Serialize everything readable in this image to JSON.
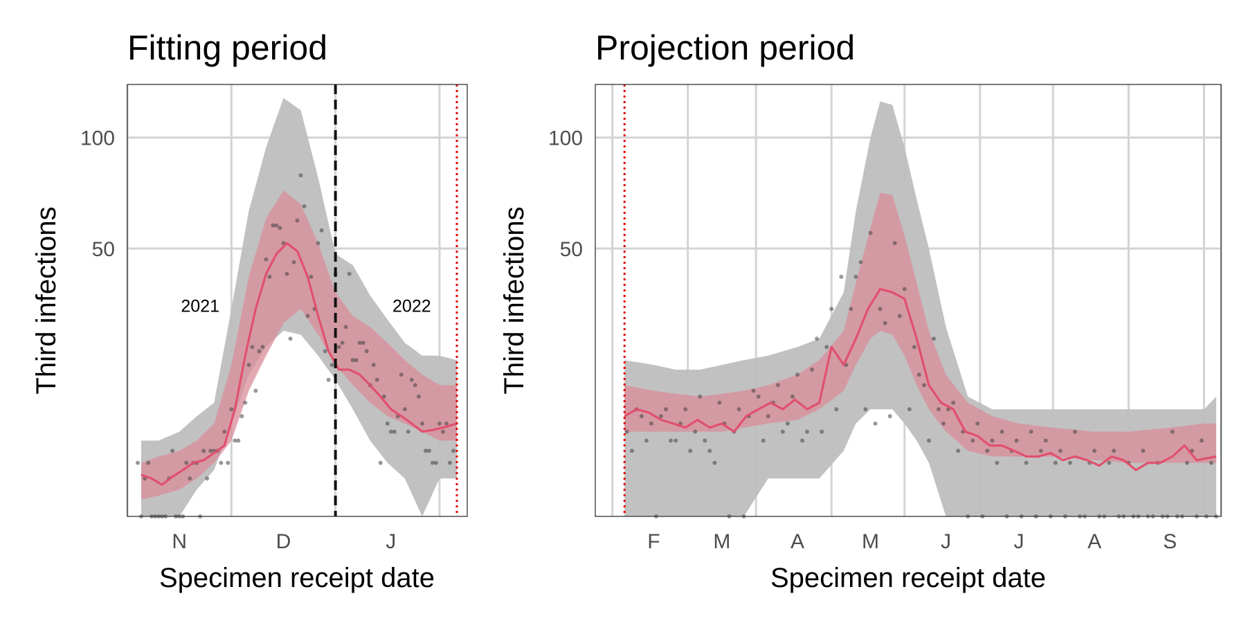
{
  "colors": {
    "outer_ribbon": "#bebebe",
    "inner_ribbon": "#d98c9a",
    "median_line": "#e0506e",
    "points": "#444444",
    "grid": "#d3d3d3",
    "fit_end_line": "#111111",
    "period_boundary_line": "#e00000"
  },
  "chart_data": [
    {
      "type": "line",
      "title": "Fitting period",
      "xlabel": "Specimen receipt date",
      "ylabel": "Third infections",
      "y_scale": "sqrt",
      "ylim": [
        0,
        130
      ],
      "y_ticks": [
        50,
        100
      ],
      "y_tick_labels": [
        "50",
        "100"
      ],
      "xlim": [
        "2021-10-17",
        "2022-01-23"
      ],
      "x_tick_labels": [
        {
          "date": "2021-11-01",
          "label": "N"
        },
        {
          "date": "2021-12-01",
          "label": "D"
        },
        {
          "date": "2022-01-01",
          "label": "J"
        }
      ],
      "x_grid_dates": [
        "2021-10-17",
        "2021-11-16",
        "2021-12-16",
        "2022-01-15"
      ],
      "annotations": [
        {
          "text": "2021",
          "date": "2021-11-07",
          "y": 31
        },
        {
          "text": "2022",
          "date": "2022-01-07",
          "y": 31
        }
      ],
      "vlines": [
        {
          "date": "2021-12-16",
          "style": "dashed",
          "color": "black"
        },
        {
          "date": "2022-01-20",
          "style": "dotted",
          "color": "red"
        }
      ],
      "outer_band": {
        "x": [
          "2021-10-21",
          "2021-10-26",
          "2021-11-01",
          "2021-11-06",
          "2021-11-11",
          "2021-11-16",
          "2021-11-21",
          "2021-11-26",
          "2021-12-01",
          "2021-12-06",
          "2021-12-11",
          "2021-12-16",
          "2021-12-21",
          "2021-12-26",
          "2021-12-31",
          "2022-01-05",
          "2022-01-10",
          "2022-01-15",
          "2022-01-20"
        ],
        "lower": [
          0,
          0,
          0,
          0.5,
          1.5,
          6,
          14,
          20,
          24,
          23,
          18,
          13,
          8,
          4,
          2,
          1,
          0,
          1,
          1
        ],
        "upper": [
          4,
          4,
          5,
          7,
          9,
          30,
          65,
          95,
          122,
          115,
          80,
          48,
          44,
          34,
          27,
          21,
          18,
          18,
          17
        ]
      },
      "inner_band": {
        "x": [
          "2021-10-21",
          "2021-10-26",
          "2021-11-01",
          "2021-11-06",
          "2021-11-11",
          "2021-11-16",
          "2021-11-21",
          "2021-11-26",
          "2021-12-01",
          "2021-12-06",
          "2021-12-11",
          "2021-12-16",
          "2021-12-21",
          "2021-12-26",
          "2021-12-31",
          "2022-01-05",
          "2022-01-10",
          "2022-01-15",
          "2022-01-20"
        ],
        "lower": [
          0.2,
          0.3,
          0.5,
          1,
          2,
          4,
          11,
          18,
          26,
          30,
          23,
          16,
          12,
          9,
          7,
          6,
          5,
          4,
          4
        ],
        "upper": [
          2,
          2.5,
          3,
          4,
          6,
          16,
          40,
          62,
          74,
          68,
          52,
          35,
          28,
          25,
          21,
          17,
          14,
          12,
          12
        ]
      },
      "median_line": {
        "x": [
          "2021-10-21",
          "2021-10-24",
          "2021-10-27",
          "2021-10-30",
          "2021-11-02",
          "2021-11-05",
          "2021-11-08",
          "2021-11-11",
          "2021-11-14",
          "2021-11-17",
          "2021-11-20",
          "2021-11-23",
          "2021-11-26",
          "2021-11-29",
          "2021-12-02",
          "2021-12-05",
          "2021-12-08",
          "2021-12-11",
          "2021-12-14",
          "2021-12-17",
          "2021-12-20",
          "2021-12-23",
          "2021-12-26",
          "2021-12-29",
          "2022-01-01",
          "2022-01-04",
          "2022-01-07",
          "2022-01-10",
          "2022-01-13",
          "2022-01-16",
          "2022-01-20"
        ],
        "y": [
          1.2,
          1.0,
          0.7,
          1.1,
          1.5,
          2.0,
          2.2,
          2.8,
          3.5,
          8,
          18,
          30,
          41,
          48,
          52,
          49,
          40,
          28,
          19,
          15,
          15,
          14,
          12,
          10,
          8,
          7,
          6,
          5,
          5.2,
          5.5,
          6
        ]
      },
      "points": {
        "x": [
          "2021-10-20",
          "2021-10-21",
          "2021-10-22",
          "2021-10-23",
          "2021-10-24",
          "2021-10-25",
          "2021-10-26",
          "2021-10-27",
          "2021-10-28",
          "2021-10-29",
          "2021-10-30",
          "2021-10-31",
          "2021-11-01",
          "2021-11-02",
          "2021-11-03",
          "2021-11-04",
          "2021-11-05",
          "2021-11-06",
          "2021-11-07",
          "2021-11-08",
          "2021-11-09",
          "2021-11-10",
          "2021-11-11",
          "2021-11-12",
          "2021-11-13",
          "2021-11-14",
          "2021-11-15",
          "2021-11-16",
          "2021-11-17",
          "2021-11-18",
          "2021-11-19",
          "2021-11-20",
          "2021-11-21",
          "2021-11-22",
          "2021-11-23",
          "2021-11-24",
          "2021-11-25",
          "2021-11-26",
          "2021-11-27",
          "2021-11-28",
          "2021-11-29",
          "2021-11-30",
          "2021-12-01",
          "2021-12-02",
          "2021-12-03",
          "2021-12-04",
          "2021-12-05",
          "2021-12-06",
          "2021-12-07",
          "2021-12-08",
          "2021-12-09",
          "2021-12-10",
          "2021-12-11",
          "2021-12-12",
          "2021-12-13",
          "2021-12-14",
          "2021-12-15",
          "2021-12-16",
          "2021-12-17",
          "2021-12-18",
          "2021-12-19",
          "2021-12-20",
          "2021-12-21",
          "2021-12-22",
          "2021-12-23",
          "2021-12-24",
          "2021-12-25",
          "2021-12-26",
          "2021-12-27",
          "2021-12-28",
          "2021-12-29",
          "2021-12-30",
          "2021-12-31",
          "2022-01-01",
          "2022-01-02",
          "2022-01-03",
          "2022-01-04",
          "2022-01-05",
          "2022-01-06",
          "2022-01-07",
          "2022-01-08",
          "2022-01-09",
          "2022-01-10",
          "2022-01-11",
          "2022-01-12",
          "2022-01-13",
          "2022-01-14",
          "2022-01-15",
          "2022-01-16",
          "2022-01-17",
          "2022-01-18",
          "2022-01-19"
        ],
        "y": [
          2,
          0,
          1,
          2,
          0,
          0,
          0,
          0,
          0,
          1,
          3,
          0,
          0,
          0,
          2,
          1,
          2,
          2,
          0,
          3,
          1,
          3,
          3,
          3,
          2,
          5,
          2,
          8,
          4,
          4,
          7,
          9,
          16,
          20,
          11,
          19,
          20,
          46,
          40,
          59,
          59,
          58,
          52,
          41,
          22,
          45,
          61,
          81,
          67,
          28,
          40,
          30,
          52,
          57,
          19,
          13,
          16,
          41,
          20,
          21,
          25,
          41,
          17,
          17,
          21,
          21,
          19,
          12,
          16,
          13,
          2,
          10,
          6,
          5,
          5,
          7,
          14,
          8,
          5,
          13,
          12,
          10,
          6,
          3,
          3,
          2,
          2,
          6,
          5,
          6,
          2,
          3
        ]
      }
    },
    {
      "type": "line",
      "title": "Projection period",
      "xlabel": "Specimen receipt date",
      "ylabel": "Third infections",
      "y_scale": "sqrt",
      "ylim": [
        0,
        130
      ],
      "y_ticks": [
        50,
        100
      ],
      "y_tick_labels": [
        "50",
        "100"
      ],
      "xlim": [
        "2022-01-08",
        "2022-09-22"
      ],
      "x_tick_labels": [
        {
          "date": "2022-02-01",
          "label": "F"
        },
        {
          "date": "2022-03-01",
          "label": "M"
        },
        {
          "date": "2022-04-01",
          "label": "A"
        },
        {
          "date": "2022-05-01",
          "label": "M"
        },
        {
          "date": "2022-06-01",
          "label": "J"
        },
        {
          "date": "2022-07-01",
          "label": "J"
        },
        {
          "date": "2022-08-01",
          "label": "A"
        },
        {
          "date": "2022-09-01",
          "label": "S"
        }
      ],
      "x_grid_dates": [
        "2022-01-15",
        "2022-02-15",
        "2022-03-15",
        "2022-04-15",
        "2022-05-15",
        "2022-06-15",
        "2022-07-15",
        "2022-08-15",
        "2022-09-15",
        "2022-09-22"
      ],
      "vlines": [
        {
          "date": "2022-01-20",
          "style": "dotted",
          "color": "red"
        }
      ],
      "outer_band": {
        "x": [
          "2022-01-20",
          "2022-02-01",
          "2022-02-10",
          "2022-02-20",
          "2022-03-01",
          "2022-03-10",
          "2022-03-20",
          "2022-04-01",
          "2022-04-10",
          "2022-04-20",
          "2022-04-25",
          "2022-05-01",
          "2022-05-05",
          "2022-05-10",
          "2022-05-15",
          "2022-05-20",
          "2022-05-25",
          "2022-06-01",
          "2022-06-10",
          "2022-06-20",
          "2022-07-01",
          "2022-07-15",
          "2022-08-01",
          "2022-08-15",
          "2022-09-01",
          "2022-09-15",
          "2022-09-20"
        ],
        "lower": [
          0,
          0,
          0,
          0,
          0,
          0,
          1,
          1,
          1,
          3,
          6,
          8,
          8,
          8,
          6,
          4,
          2,
          0,
          0,
          0,
          0,
          0,
          0,
          0,
          0,
          0,
          0
        ],
        "upper": [
          17,
          16,
          15,
          15,
          16,
          17,
          18,
          20,
          22,
          35,
          65,
          100,
          120,
          118,
          95,
          70,
          50,
          25,
          10,
          8,
          8,
          8,
          8,
          8,
          8,
          8,
          10
        ]
      },
      "inner_band": {
        "x": [
          "2022-01-20",
          "2022-02-01",
          "2022-02-10",
          "2022-02-20",
          "2022-03-01",
          "2022-03-10",
          "2022-03-20",
          "2022-04-01",
          "2022-04-10",
          "2022-04-20",
          "2022-04-25",
          "2022-05-01",
          "2022-05-05",
          "2022-05-10",
          "2022-05-15",
          "2022-05-20",
          "2022-05-25",
          "2022-06-01",
          "2022-06-10",
          "2022-06-20",
          "2022-07-01",
          "2022-07-15",
          "2022-08-01",
          "2022-08-15",
          "2022-09-01",
          "2022-09-15",
          "2022-09-20"
        ],
        "lower": [
          5,
          5,
          5,
          5,
          5,
          5.5,
          6,
          6.5,
          8,
          11,
          16,
          22,
          24,
          23,
          18,
          12,
          8,
          5,
          3,
          2.5,
          2.5,
          2.5,
          2.2,
          2,
          2,
          2,
          2
        ],
        "upper": [
          12,
          11,
          10.5,
          10,
          10.5,
          11,
          12,
          14,
          17,
          24,
          38,
          58,
          73,
          72,
          55,
          38,
          24,
          14,
          9,
          7,
          6,
          5.5,
          5,
          5,
          5.5,
          6,
          6
        ]
      },
      "median_line": {
        "x": [
          "2022-01-20",
          "2022-01-25",
          "2022-01-30",
          "2022-02-04",
          "2022-02-09",
          "2022-02-14",
          "2022-02-19",
          "2022-02-24",
          "2022-03-01",
          "2022-03-06",
          "2022-03-11",
          "2022-03-16",
          "2022-03-21",
          "2022-03-26",
          "2022-03-31",
          "2022-04-05",
          "2022-04-10",
          "2022-04-15",
          "2022-04-20",
          "2022-04-25",
          "2022-04-30",
          "2022-05-05",
          "2022-05-10",
          "2022-05-15",
          "2022-05-20",
          "2022-05-25",
          "2022-05-30",
          "2022-06-04",
          "2022-06-09",
          "2022-06-14",
          "2022-06-19",
          "2022-06-24",
          "2022-06-29",
          "2022-07-04",
          "2022-07-09",
          "2022-07-14",
          "2022-07-19",
          "2022-07-24",
          "2022-07-29",
          "2022-08-03",
          "2022-08-08",
          "2022-08-13",
          "2022-08-18",
          "2022-08-23",
          "2022-08-28",
          "2022-09-02",
          "2022-09-07",
          "2022-09-12",
          "2022-09-20"
        ],
        "y": [
          7,
          8,
          7.5,
          6.5,
          6,
          5.5,
          6.5,
          5.5,
          6,
          5,
          7,
          8,
          9,
          8,
          9.5,
          8,
          9,
          20,
          16,
          22,
          30,
          36,
          35,
          33,
          22,
          12,
          9,
          8,
          5,
          4.5,
          3.5,
          3.5,
          3,
          2.5,
          2.5,
          2.8,
          2.2,
          2.5,
          2.2,
          1.8,
          2.5,
          2.2,
          1.5,
          2,
          2,
          2.5,
          3.5,
          2.2,
          2.5
        ]
      },
      "points": {
        "x": [
          "2022-01-21",
          "2022-01-23",
          "2022-01-25",
          "2022-01-27",
          "2022-01-29",
          "2022-01-31",
          "2022-02-02",
          "2022-02-04",
          "2022-02-06",
          "2022-02-08",
          "2022-02-10",
          "2022-02-12",
          "2022-02-14",
          "2022-02-16",
          "2022-02-18",
          "2022-02-20",
          "2022-02-22",
          "2022-02-24",
          "2022-02-26",
          "2022-02-28",
          "2022-03-02",
          "2022-03-04",
          "2022-03-06",
          "2022-03-08",
          "2022-03-10",
          "2022-03-12",
          "2022-03-14",
          "2022-03-16",
          "2022-03-18",
          "2022-03-20",
          "2022-03-22",
          "2022-03-24",
          "2022-03-26",
          "2022-03-28",
          "2022-03-30",
          "2022-04-01",
          "2022-04-03",
          "2022-04-05",
          "2022-04-07",
          "2022-04-09",
          "2022-04-11",
          "2022-04-13",
          "2022-04-15",
          "2022-04-17",
          "2022-04-19",
          "2022-04-21",
          "2022-04-23",
          "2022-04-25",
          "2022-04-27",
          "2022-04-29",
          "2022-05-01",
          "2022-05-03",
          "2022-05-05",
          "2022-05-07",
          "2022-05-09",
          "2022-05-11",
          "2022-05-13",
          "2022-05-15",
          "2022-05-17",
          "2022-05-19",
          "2022-05-21",
          "2022-05-23",
          "2022-05-25",
          "2022-05-27",
          "2022-05-29",
          "2022-05-31",
          "2022-06-02",
          "2022-06-04",
          "2022-06-06",
          "2022-06-08",
          "2022-06-10",
          "2022-06-12",
          "2022-06-14",
          "2022-06-16",
          "2022-06-18",
          "2022-06-20",
          "2022-06-22",
          "2022-06-24",
          "2022-06-26",
          "2022-06-28",
          "2022-06-30",
          "2022-07-02",
          "2022-07-04",
          "2022-07-06",
          "2022-07-08",
          "2022-07-10",
          "2022-07-12",
          "2022-07-14",
          "2022-07-16",
          "2022-07-18",
          "2022-07-20",
          "2022-07-22",
          "2022-07-24",
          "2022-07-26",
          "2022-07-28",
          "2022-07-30",
          "2022-08-01",
          "2022-08-03",
          "2022-08-05",
          "2022-08-07",
          "2022-08-09",
          "2022-08-11",
          "2022-08-13",
          "2022-08-15",
          "2022-08-17",
          "2022-08-19",
          "2022-08-21",
          "2022-08-23",
          "2022-08-25",
          "2022-08-27",
          "2022-08-29",
          "2022-08-31",
          "2022-09-02",
          "2022-09-04",
          "2022-09-06",
          "2022-09-08",
          "2022-09-10",
          "2022-09-12",
          "2022-09-14",
          "2022-09-16",
          "2022-09-18",
          "2022-09-20"
        ],
        "y": [
          5,
          3,
          8,
          7,
          4,
          6,
          0,
          7,
          8,
          4,
          4,
          6,
          8,
          3,
          5,
          10,
          4,
          3,
          2,
          9,
          6,
          0,
          5,
          8,
          0,
          7,
          11,
          10,
          4,
          7,
          9,
          12,
          5,
          6,
          10,
          14,
          4,
          5,
          15,
          22,
          5,
          20,
          30,
          8,
          40,
          16,
          30,
          40,
          45,
          8,
          56,
          6,
          30,
          26,
          7,
          52,
          28,
          36,
          8,
          20,
          14,
          12,
          4,
          22,
          8,
          6,
          8,
          9,
          3,
          5,
          0,
          4,
          6,
          0,
          3,
          4,
          2,
          5,
          0,
          3,
          4,
          0,
          2,
          5,
          0,
          3,
          4,
          0,
          2,
          3,
          0,
          2,
          5,
          0,
          0,
          2,
          3,
          0,
          0,
          2,
          3,
          0,
          0,
          2,
          0,
          0,
          3,
          0,
          0,
          2,
          0,
          0,
          5,
          0,
          0,
          2,
          3,
          0,
          4,
          0,
          2,
          0
        ]
      }
    }
  ]
}
